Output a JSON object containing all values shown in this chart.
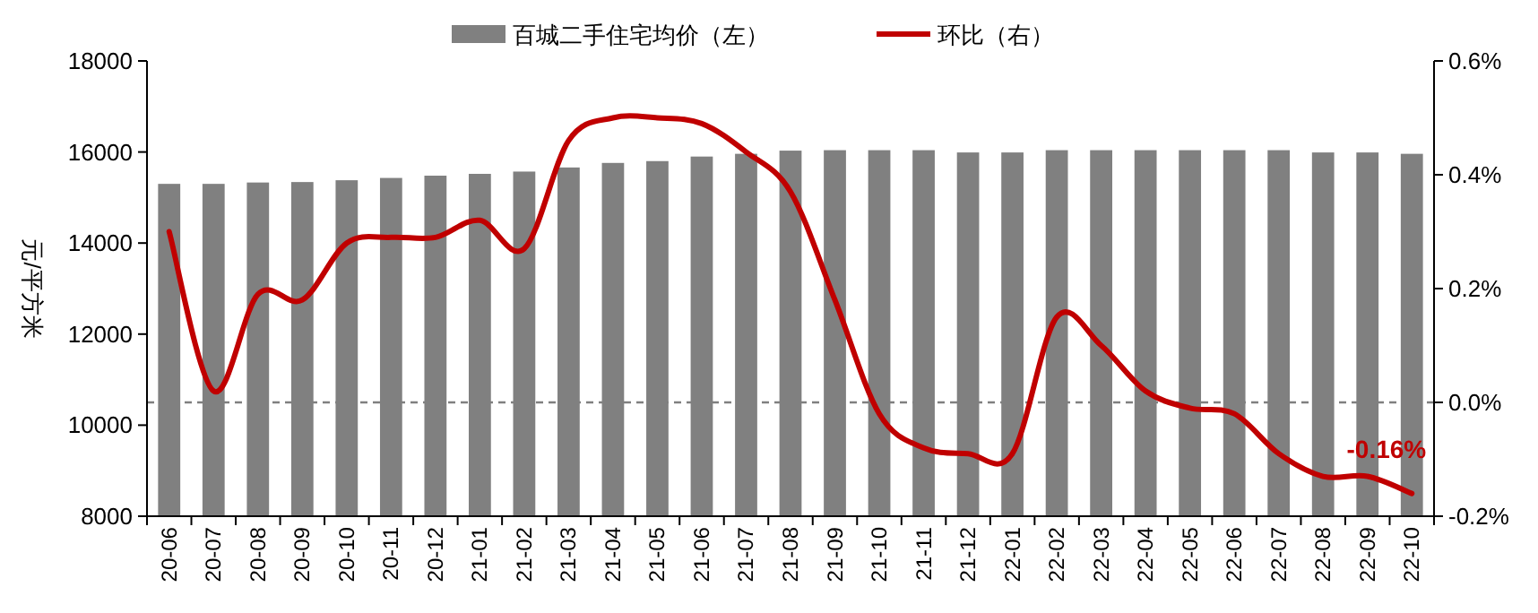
{
  "chart_data": {
    "type": "bar",
    "ylabel": "元/平方米",
    "categories": [
      "20-06",
      "20-07",
      "20-08",
      "20-09",
      "20-10",
      "20-11",
      "20-12",
      "21-01",
      "21-02",
      "21-03",
      "21-04",
      "21-05",
      "21-06",
      "21-07",
      "21-08",
      "21-09",
      "21-10",
      "21-11",
      "21-12",
      "22-01",
      "22-02",
      "22-03",
      "22-04",
      "22-05",
      "22-06",
      "22-07",
      "22-08",
      "22-09",
      "22-10"
    ],
    "series": [
      {
        "name": "百城二手住宅均价（左）",
        "color": "#808080",
        "values": [
          15300,
          15300,
          15330,
          15340,
          15380,
          15430,
          15480,
          15520,
          15570,
          15660,
          15760,
          15800,
          15900,
          15960,
          16030,
          16040,
          16040,
          16040,
          15990,
          15990,
          16040,
          16040,
          16040,
          16040,
          16040,
          16040,
          15990,
          15990,
          15960
        ]
      },
      {
        "name": "环比（右）",
        "type": "line",
        "axis": "y2",
        "color": "#c00000",
        "values": [
          0.3,
          0.02,
          0.19,
          0.18,
          0.28,
          0.29,
          0.29,
          0.32,
          0.27,
          0.46,
          0.5,
          0.5,
          0.49,
          0.44,
          0.37,
          0.18,
          -0.02,
          -0.08,
          -0.09,
          -0.09,
          0.15,
          0.1,
          0.02,
          -0.01,
          -0.02,
          -0.09,
          -0.13,
          -0.13,
          -0.16
        ]
      }
    ],
    "ylim": [
      8000,
      18000
    ],
    "yticks": [
      8000,
      10000,
      12000,
      14000,
      16000,
      18000
    ],
    "y2lim": [
      -0.2,
      0.6
    ],
    "y2ticks": [
      {
        "value": -0.2,
        "label": "-0.2%"
      },
      {
        "value": 0,
        "label": "0.0%"
      },
      {
        "value": 0.2,
        "label": "0.2%"
      },
      {
        "value": 0.4,
        "label": "0.4%"
      },
      {
        "value": 0.6,
        "label": "0.6%"
      }
    ],
    "ref_lines": [
      {
        "axis": "y2",
        "value": 0,
        "color": "#808080",
        "line_style": "dashed"
      }
    ],
    "annotations": [
      "-0.16%"
    ],
    "legend": "top"
  }
}
